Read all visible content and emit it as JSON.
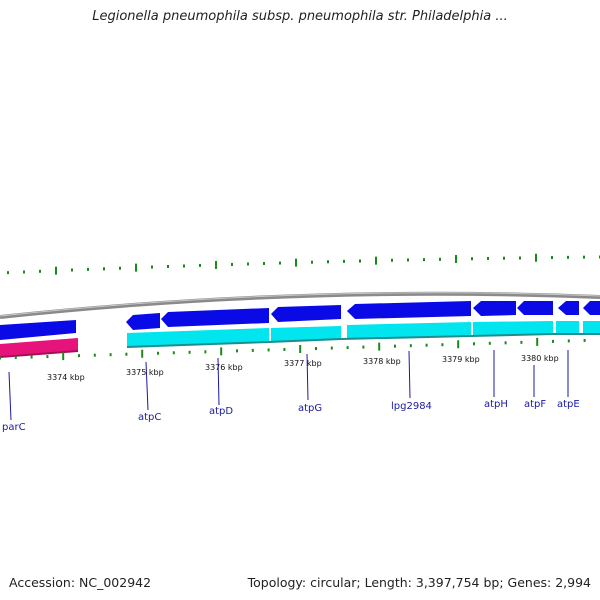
{
  "title": "Legionella pneumophila subsp. pneumophila str. Philadelphia ...",
  "footer": {
    "accession": "Accession: NC_002942",
    "summary": "Topology: circular; Length: 3,397,754 bp; Genes: 2,994"
  },
  "scale_ticks": [
    "3374 kbp",
    "3375 kbp",
    "3376 kbp",
    "3377 kbp",
    "3378 kbp",
    "3379 kbp",
    "3380 kbp"
  ],
  "genes": [
    "parC",
    "atpC",
    "atpD",
    "atpG",
    "lpg2984",
    "atpH",
    "atpF",
    "atpE"
  ],
  "colors": {
    "forward_cds": "#0a0ae6",
    "reverse_cds": "#e6137a",
    "gene_track": "#00e5ee",
    "gc_skew": "#1a8a1a",
    "backbone": "#8a8a8a",
    "label": "#1a1aa0"
  }
}
